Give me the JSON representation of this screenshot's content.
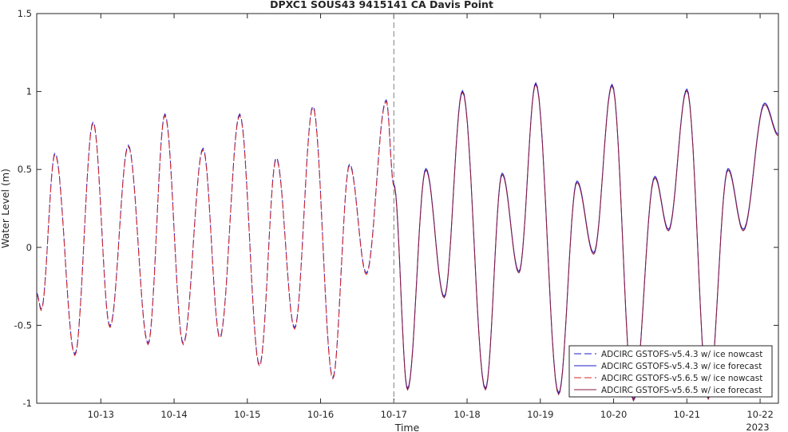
{
  "chart_data": {
    "type": "line",
    "title": "DPXC1 SOUS43 9415141 CA Davis Point",
    "xlabel": "Time",
    "ylabel": "Water Level (m)",
    "xlim": [
      "2023-10-12T03:00",
      "2023-10-22T06:00"
    ],
    "ylim": [
      -1,
      1.5
    ],
    "yticks": [
      -1,
      -0.5,
      0,
      0.5,
      1,
      1.5
    ],
    "ytick_labels": [
      "-1",
      "-0.5",
      "0",
      "0.5",
      "1",
      "1.5"
    ],
    "xticks": [
      "2023-10-13",
      "2023-10-14",
      "2023-10-15",
      "2023-10-16",
      "2023-10-17",
      "2023-10-18",
      "2023-10-19",
      "2023-10-20",
      "2023-10-21",
      "2023-10-22"
    ],
    "xtick_labels": [
      "10-13",
      "10-14",
      "10-15",
      "10-16",
      "10-17",
      "10-18",
      "10-19",
      "10-20",
      "10-21",
      "10-22"
    ],
    "x_secondary_label": "2023",
    "grid": false,
    "legend_position": "bottom-right",
    "vertical_marker": "2023-10-17",
    "extrema_nowcast": [
      [
        "2023-10-12T03:00",
        -0.3
      ],
      [
        "2023-10-12T04:30",
        -0.4
      ],
      [
        "2023-10-12T09:00",
        0.6
      ],
      [
        "2023-10-12T15:30",
        -0.69
      ],
      [
        "2023-10-12T21:30",
        0.8
      ],
      [
        "2023-10-13T03:00",
        -0.51
      ],
      [
        "2023-10-13T09:00",
        0.65
      ],
      [
        "2023-10-13T15:30",
        -0.62
      ],
      [
        "2023-10-13T21:00",
        0.85
      ],
      [
        "2023-10-14T03:00",
        -0.62
      ],
      [
        "2023-10-14T09:30",
        0.63
      ],
      [
        "2023-10-14T15:00",
        -0.58
      ],
      [
        "2023-10-14T21:30",
        0.85
      ],
      [
        "2023-10-15T04:00",
        -0.76
      ],
      [
        "2023-10-15T09:30",
        0.57
      ],
      [
        "2023-10-15T15:30",
        -0.52
      ],
      [
        "2023-10-15T21:30",
        0.9
      ],
      [
        "2023-10-16T04:00",
        -0.84
      ],
      [
        "2023-10-16T09:30",
        0.53
      ],
      [
        "2023-10-16T15:00",
        -0.17
      ],
      [
        "2023-10-16T21:30",
        0.94
      ],
      [
        "2023-10-17T00:00",
        0.4
      ]
    ],
    "extrema_forecast": [
      [
        "2023-10-17T00:00",
        0.4
      ],
      [
        "2023-10-17T04:30",
        -0.91
      ],
      [
        "2023-10-17T10:30",
        0.5
      ],
      [
        "2023-10-17T16:30",
        -0.32
      ],
      [
        "2023-10-17T22:30",
        1.0
      ],
      [
        "2023-10-18T06:00",
        -0.91
      ],
      [
        "2023-10-18T11:30",
        0.47
      ],
      [
        "2023-10-18T17:00",
        -0.16
      ],
      [
        "2023-10-18T22:30",
        1.05
      ],
      [
        "2023-10-19T06:00",
        -0.94
      ],
      [
        "2023-10-19T12:00",
        0.42
      ],
      [
        "2023-10-19T17:30",
        -0.04
      ],
      [
        "2023-10-19T23:30",
        1.04
      ],
      [
        "2023-10-20T06:30",
        -0.98
      ],
      [
        "2023-10-20T13:30",
        0.45
      ],
      [
        "2023-10-20T18:00",
        0.11
      ],
      [
        "2023-10-21T00:00",
        1.01
      ],
      [
        "2023-10-21T07:00",
        -0.97
      ],
      [
        "2023-10-21T13:30",
        0.5
      ],
      [
        "2023-10-21T18:30",
        0.11
      ],
      [
        "2023-10-22T01:30",
        0.92
      ],
      [
        "2023-10-22T06:00",
        0.72
      ]
    ],
    "series": [
      {
        "name": "ADCIRC GSTOFS-v5.4.3 w/ ice nowcast",
        "color": "#1f1fcc",
        "dash": "dashed",
        "segment": "nowcast"
      },
      {
        "name": "ADCIRC GSTOFS-v5.4.3 w/ ice forecast",
        "color": "#1f1fcc",
        "dash": "solid",
        "segment": "forecast"
      },
      {
        "name": "ADCIRC GSTOFS-v5.6.5 w/ ice nowcast",
        "color": "#d62728",
        "dash": "dashed",
        "segment": "nowcast"
      },
      {
        "name": "ADCIRC GSTOFS-v5.6.5 w/ ice forecast",
        "color": "#8b1a3c",
        "dash": "solid",
        "segment": "forecast"
      }
    ]
  }
}
